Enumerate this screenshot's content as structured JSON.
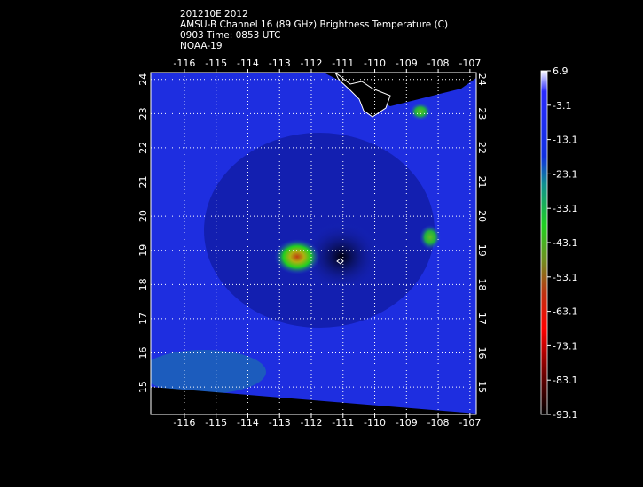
{
  "header": {
    "lines": [
      "201210E 2012",
      "AMSU-B Channel 16 (89 GHz) Brightness Temperature (C)",
      "0903 Time: 0853 UTC",
      "NOAA-19"
    ]
  },
  "map": {
    "xlim": [
      -117.06,
      -106.8
    ],
    "ylim": [
      14.2,
      24.2
    ],
    "xticks": [
      -116,
      -115,
      -114,
      -113,
      -112,
      -111,
      -110,
      -109,
      -108,
      -107
    ],
    "yticks": [
      15,
      16,
      17,
      18,
      19,
      20,
      21,
      22,
      23,
      24
    ],
    "grid": true
  },
  "colorbar": {
    "clim": [
      -93.1,
      6.9
    ],
    "ticks": [
      6.9,
      -3.1,
      -13.1,
      -23.1,
      -33.1,
      -43.1,
      -53.1,
      -63.1,
      -73.1,
      -83.1,
      -93.1
    ]
  }
}
